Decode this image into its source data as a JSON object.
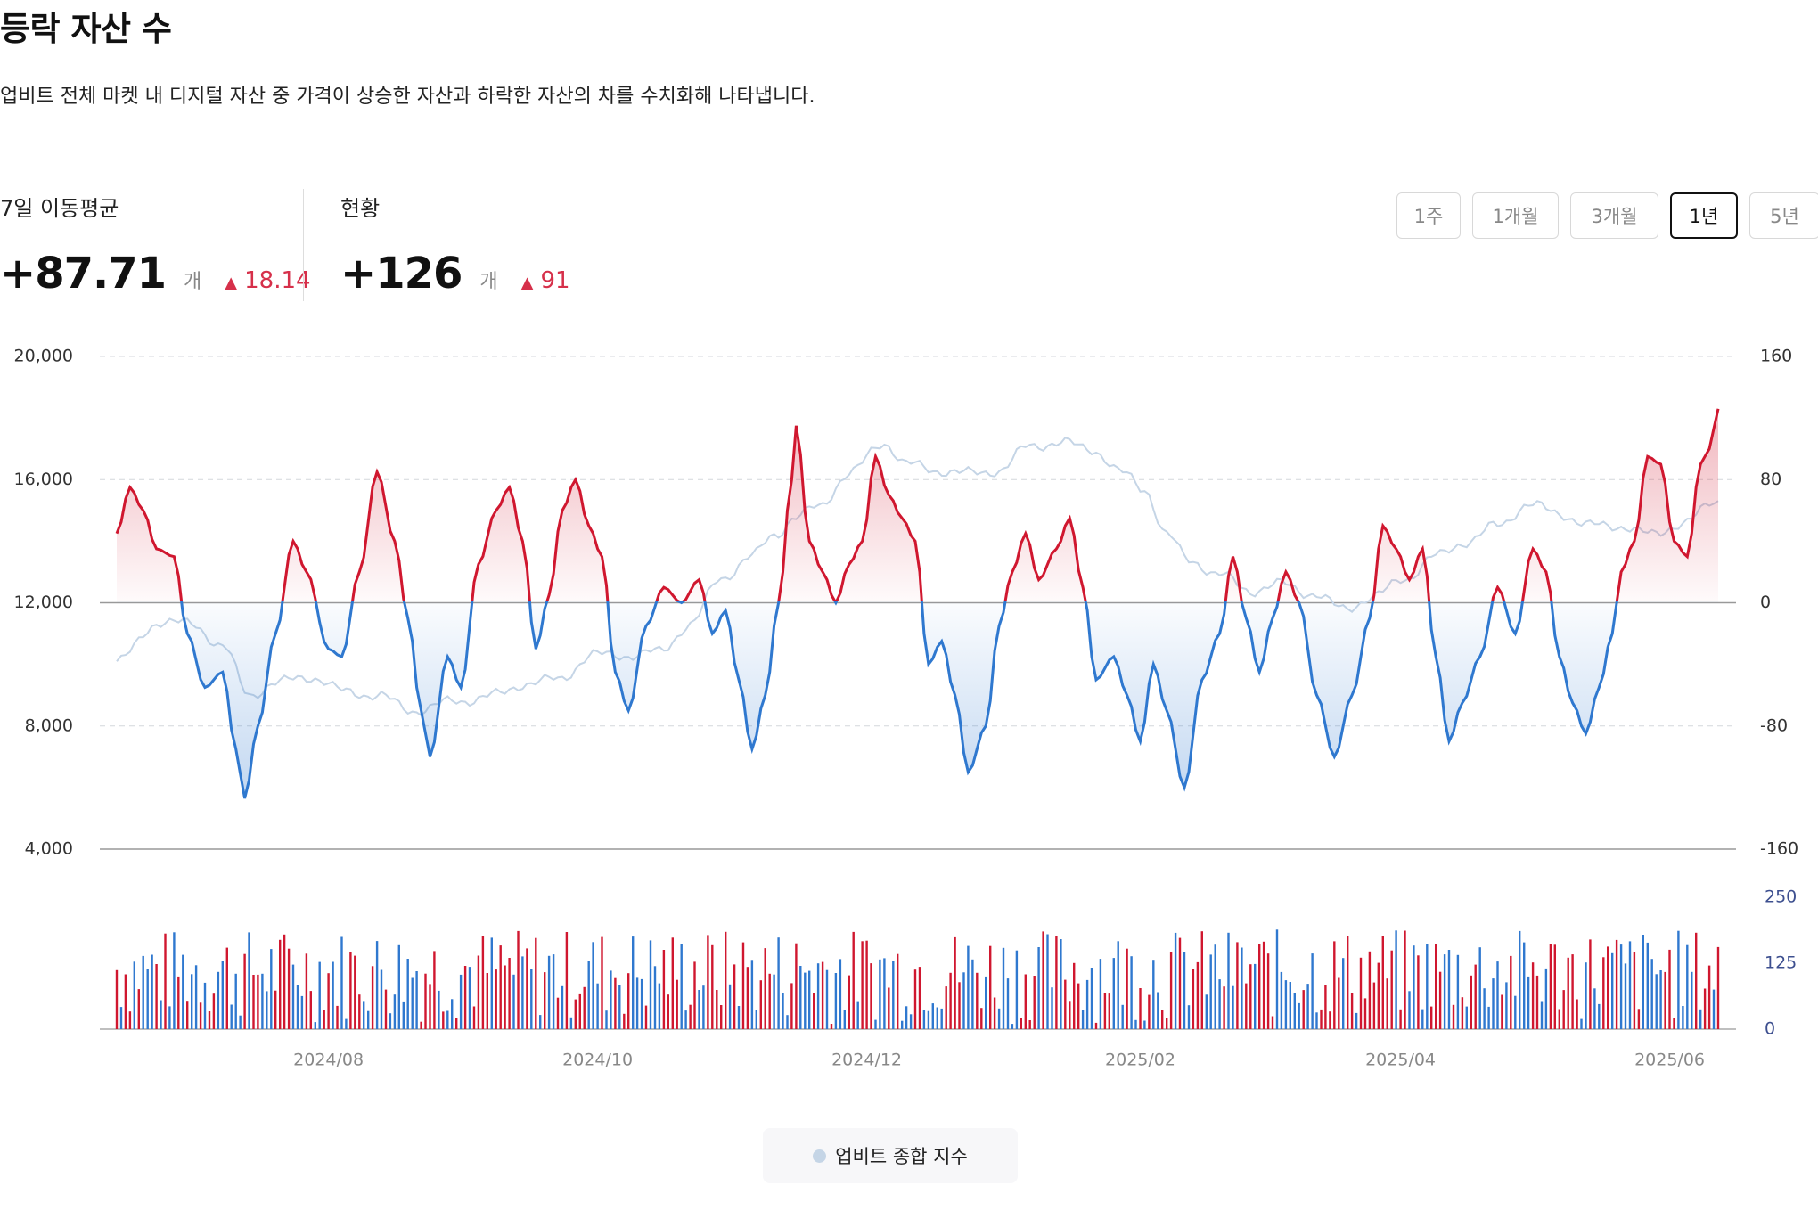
{
  "header": {
    "title": "등락 자산 수",
    "description": "업비트 전체 마켓 내 디지털 자산 중 가격이 상승한 자산과 하락한 자산의 차를 수치화해 나타냅니다."
  },
  "metrics": [
    {
      "label": "7일 이동평균",
      "value": "+87.71",
      "unit": "개",
      "delta": "18.14",
      "delta_direction": "up",
      "delta_icon": "triangle-up-icon"
    },
    {
      "label": "현황",
      "value": "+126",
      "unit": "개",
      "delta": "91",
      "delta_direction": "up",
      "delta_icon": "triangle-up-icon"
    }
  ],
  "periods": {
    "options": [
      "1주",
      "1개월",
      "3개월",
      "1년",
      "5년"
    ],
    "selected": "1년"
  },
  "legend": {
    "items": [
      {
        "label": "업비트 종합 지수",
        "color": "#c5d5e6"
      }
    ]
  },
  "colors": {
    "positive": "#d0172f",
    "negative": "#2f78cf",
    "index_line": "#c5d5e6",
    "right_axis_label": "#3d4f8f",
    "grid": "#d4d7dc",
    "baseline": "#999999"
  },
  "chart_data": {
    "type": "line",
    "x_ticks": [
      "2024/08",
      "2024/10",
      "2024/12",
      "2025/02",
      "2025/04",
      "2025/06"
    ],
    "x_range": [
      "2024-06-14",
      "2025-06-12"
    ],
    "y_left": {
      "ticks": [
        "20,000",
        "16,000",
        "12,000",
        "8,000",
        "4,000"
      ],
      "range": [
        4000,
        20000
      ]
    },
    "y_right": {
      "ticks": [
        "160",
        "80",
        "0",
        "-80",
        "-160"
      ],
      "range": [
        -160,
        160
      ]
    },
    "volume_axis": {
      "ticks": [
        "250",
        "125",
        "0"
      ],
      "range": [
        0,
        250
      ]
    },
    "series": [
      {
        "name": "업비트 종합 지수",
        "axis": "left",
        "color": "#c5d5e6",
        "keypoints": [
          [
            "2024-06-14",
            10100
          ],
          [
            "2024-06-24",
            11400
          ],
          [
            "2024-07-01",
            11300
          ],
          [
            "2024-07-08",
            10600
          ],
          [
            "2024-07-14",
            9000
          ],
          [
            "2024-07-20",
            9400
          ],
          [
            "2024-07-28",
            9600
          ],
          [
            "2024-08-05",
            9100
          ],
          [
            "2024-08-12",
            9000
          ],
          [
            "2024-08-20",
            8500
          ],
          [
            "2024-08-30",
            8800
          ],
          [
            "2024-09-08",
            9000
          ],
          [
            "2024-09-15",
            9400
          ],
          [
            "2024-09-22",
            9500
          ],
          [
            "2024-09-30",
            10300
          ],
          [
            "2024-10-08",
            10300
          ],
          [
            "2024-10-15",
            10400
          ],
          [
            "2024-10-22",
            11300
          ],
          [
            "2024-10-29",
            12800
          ],
          [
            "2024-11-05",
            13500
          ],
          [
            "2024-11-10",
            14200
          ],
          [
            "2024-11-15",
            14800
          ],
          [
            "2024-11-20",
            15100
          ],
          [
            "2024-11-27",
            16200
          ],
          [
            "2024-12-05",
            17200
          ],
          [
            "2024-12-10",
            16500
          ],
          [
            "2024-12-17",
            16300
          ],
          [
            "2024-12-24",
            16200
          ],
          [
            "2024-12-31",
            16300
          ],
          [
            "2025-01-07",
            17100
          ],
          [
            "2025-01-14",
            17200
          ],
          [
            "2025-01-21",
            17000
          ],
          [
            "2025-01-28",
            16200
          ],
          [
            "2025-02-02",
            15700
          ],
          [
            "2025-02-07",
            14200
          ],
          [
            "2025-02-12",
            13400
          ],
          [
            "2025-02-19",
            12900
          ],
          [
            "2025-02-26",
            12400
          ],
          [
            "2025-03-05",
            12600
          ],
          [
            "2025-03-12",
            12300
          ],
          [
            "2025-03-19",
            11800
          ],
          [
            "2025-03-26",
            12200
          ],
          [
            "2025-04-02",
            12800
          ],
          [
            "2025-04-09",
            13500
          ],
          [
            "2025-04-16",
            14000
          ],
          [
            "2025-04-23",
            14500
          ],
          [
            "2025-04-30",
            15200
          ],
          [
            "2025-05-07",
            14900
          ],
          [
            "2025-05-14",
            14500
          ],
          [
            "2025-05-21",
            14500
          ],
          [
            "2025-05-28",
            14200
          ],
          [
            "2025-06-04",
            14600
          ],
          [
            "2025-06-12",
            15300
          ]
        ]
      },
      {
        "name": "등락 자산 수",
        "axis": "right",
        "colors": {
          "positive": "#d0172f",
          "negative": "#2f78cf"
        },
        "keypoints": [
          [
            "2024-06-14",
            45
          ],
          [
            "2024-06-17",
            75
          ],
          [
            "2024-06-20",
            60
          ],
          [
            "2024-06-23",
            35
          ],
          [
            "2024-06-27",
            30
          ],
          [
            "2024-06-30",
            -20
          ],
          [
            "2024-07-04",
            -55
          ],
          [
            "2024-07-08",
            -45
          ],
          [
            "2024-07-11",
            -95
          ],
          [
            "2024-07-13",
            -127
          ],
          [
            "2024-07-16",
            -80
          ],
          [
            "2024-07-20",
            -20
          ],
          [
            "2024-07-24",
            40
          ],
          [
            "2024-07-27",
            20
          ],
          [
            "2024-08-01",
            -30
          ],
          [
            "2024-08-04",
            -35
          ],
          [
            "2024-08-08",
            20
          ],
          [
            "2024-08-12",
            85
          ],
          [
            "2024-08-16",
            40
          ],
          [
            "2024-08-19",
            -10
          ],
          [
            "2024-08-22",
            -70
          ],
          [
            "2024-08-24",
            -100
          ],
          [
            "2024-08-28",
            -35
          ],
          [
            "2024-08-31",
            -55
          ],
          [
            "2024-09-04",
            25
          ],
          [
            "2024-09-08",
            60
          ],
          [
            "2024-09-11",
            75
          ],
          [
            "2024-09-14",
            40
          ],
          [
            "2024-09-17",
            -30
          ],
          [
            "2024-09-20",
            5
          ],
          [
            "2024-09-23",
            60
          ],
          [
            "2024-09-26",
            80
          ],
          [
            "2024-09-29",
            50
          ],
          [
            "2024-10-02",
            30
          ],
          [
            "2024-10-05",
            -45
          ],
          [
            "2024-10-08",
            -70
          ],
          [
            "2024-10-12",
            -15
          ],
          [
            "2024-10-16",
            10
          ],
          [
            "2024-10-20",
            0
          ],
          [
            "2024-10-24",
            15
          ],
          [
            "2024-10-27",
            -20
          ],
          [
            "2024-10-30",
            -5
          ],
          [
            "2024-11-02",
            -50
          ],
          [
            "2024-11-05",
            -95
          ],
          [
            "2024-11-08",
            -60
          ],
          [
            "2024-11-11",
            0
          ],
          [
            "2024-11-14",
            80
          ],
          [
            "2024-11-15",
            115
          ],
          [
            "2024-11-18",
            40
          ],
          [
            "2024-11-21",
            20
          ],
          [
            "2024-11-24",
            0
          ],
          [
            "2024-11-27",
            25
          ],
          [
            "2024-11-30",
            40
          ],
          [
            "2024-12-03",
            95
          ],
          [
            "2024-12-06",
            70
          ],
          [
            "2024-12-09",
            55
          ],
          [
            "2024-12-12",
            40
          ],
          [
            "2024-12-15",
            -40
          ],
          [
            "2024-12-18",
            -25
          ],
          [
            "2024-12-21",
            -60
          ],
          [
            "2024-12-24",
            -110
          ],
          [
            "2024-12-28",
            -80
          ],
          [
            "2024-12-31",
            -15
          ],
          [
            "2025-01-03",
            20
          ],
          [
            "2025-01-06",
            45
          ],
          [
            "2025-01-09",
            15
          ],
          [
            "2025-01-13",
            35
          ],
          [
            "2025-01-16",
            55
          ],
          [
            "2025-01-19",
            10
          ],
          [
            "2025-01-22",
            -50
          ],
          [
            "2025-01-26",
            -35
          ],
          [
            "2025-01-29",
            -60
          ],
          [
            "2025-02-01",
            -90
          ],
          [
            "2025-02-04",
            -40
          ],
          [
            "2025-02-07",
            -70
          ],
          [
            "2025-02-11",
            -120
          ],
          [
            "2025-02-15",
            -50
          ],
          [
            "2025-02-19",
            -20
          ],
          [
            "2025-02-22",
            30
          ],
          [
            "2025-02-25",
            -10
          ],
          [
            "2025-02-28",
            -45
          ],
          [
            "2025-03-03",
            -10
          ],
          [
            "2025-03-06",
            20
          ],
          [
            "2025-03-09",
            0
          ],
          [
            "2025-03-13",
            -60
          ],
          [
            "2025-03-17",
            -100
          ],
          [
            "2025-03-21",
            -60
          ],
          [
            "2025-03-25",
            -10
          ],
          [
            "2025-03-28",
            50
          ],
          [
            "2025-03-31",
            35
          ],
          [
            "2025-04-03",
            15
          ],
          [
            "2025-04-06",
            35
          ],
          [
            "2025-04-09",
            -35
          ],
          [
            "2025-04-12",
            -90
          ],
          [
            "2025-04-15",
            -65
          ],
          [
            "2025-04-19",
            -35
          ],
          [
            "2025-04-23",
            10
          ],
          [
            "2025-04-27",
            -20
          ],
          [
            "2025-05-01",
            35
          ],
          [
            "2025-05-04",
            20
          ],
          [
            "2025-05-07",
            -35
          ],
          [
            "2025-05-10",
            -65
          ],
          [
            "2025-05-13",
            -85
          ],
          [
            "2025-05-16",
            -55
          ],
          [
            "2025-05-19",
            -20
          ],
          [
            "2025-05-21",
            20
          ],
          [
            "2025-05-24",
            40
          ],
          [
            "2025-05-27",
            95
          ],
          [
            "2025-05-30",
            90
          ],
          [
            "2025-06-02",
            40
          ],
          [
            "2025-06-05",
            30
          ],
          [
            "2025-06-08",
            90
          ],
          [
            "2025-06-10",
            100
          ],
          [
            "2025-06-12",
            126
          ]
        ]
      }
    ],
    "volume": {
      "description": "일별 등락 자산 막대 (빨강: 상승, 파랑: 하락)",
      "approx_range": [
        10,
        190
      ]
    }
  }
}
